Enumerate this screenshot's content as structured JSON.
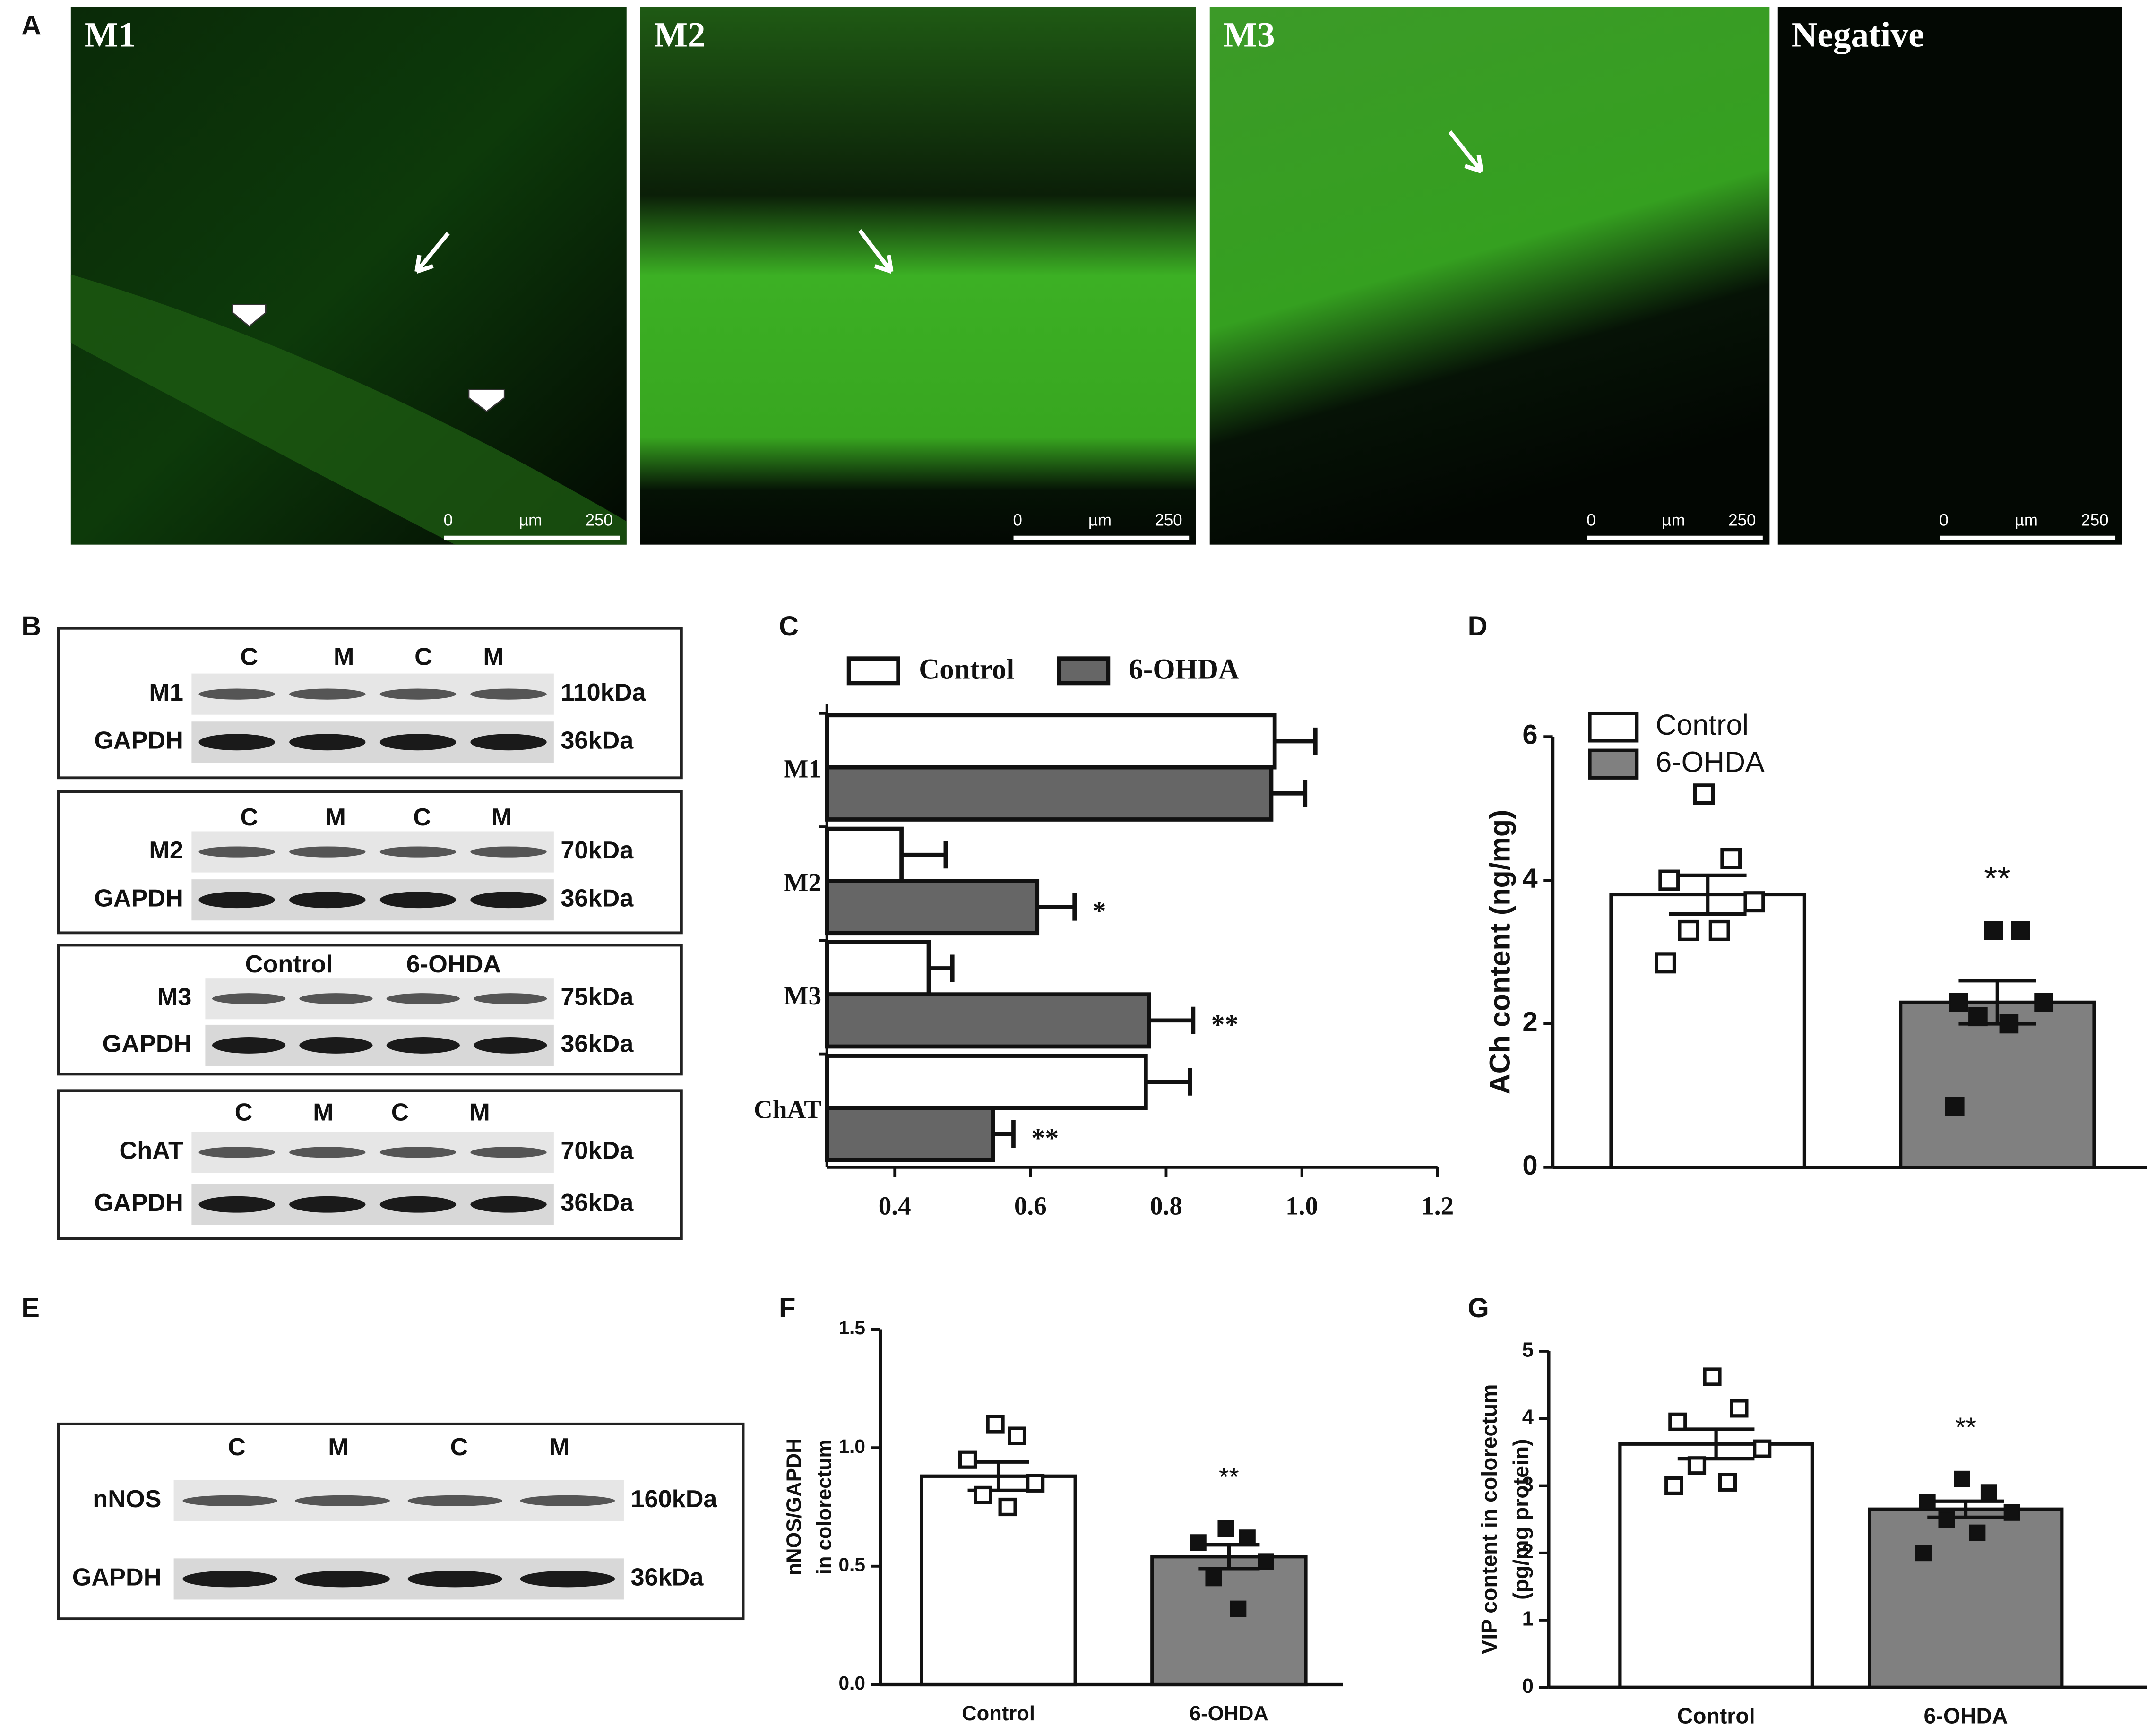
{
  "panel_labels": [
    "A",
    "B",
    "C",
    "D",
    "E",
    "F",
    "G"
  ],
  "micrographs": [
    {
      "title": "M1",
      "scale": [
        "0",
        "µm",
        "250"
      ]
    },
    {
      "title": "M2",
      "scale": [
        "0",
        "µm",
        "250"
      ]
    },
    {
      "title": "M3",
      "scale": [
        "0",
        "µm",
        "250"
      ]
    },
    {
      "title": "Negative",
      "scale": [
        "0",
        "µm",
        "250"
      ]
    }
  ],
  "blots": [
    {
      "lanes": [
        "C",
        "M",
        "C",
        "M"
      ],
      "rows": [
        {
          "label": "M1",
          "size": "110kDa"
        },
        {
          "label": "GAPDH",
          "size": "36kDa"
        }
      ]
    },
    {
      "lanes": [
        "C",
        "M",
        "C",
        "M"
      ],
      "rows": [
        {
          "label": "M2",
          "size": "70kDa"
        },
        {
          "label": "GAPDH",
          "size": "36kDa"
        }
      ]
    },
    {
      "lanes": [
        "Control",
        "6-OHDA"
      ],
      "rows": [
        {
          "label": "M3",
          "size": "75kDa"
        },
        {
          "label": "GAPDH",
          "size": "36kDa"
        }
      ]
    },
    {
      "lanes": [
        "C",
        "M",
        "C",
        "M"
      ],
      "rows": [
        {
          "label": "ChAT",
          "size": "70kDa"
        },
        {
          "label": "GAPDH",
          "size": "36kDa"
        }
      ]
    },
    {
      "lanes": [
        "C",
        "M",
        "C",
        "M"
      ],
      "rows": [
        {
          "label": "nNOS",
          "size": "160kDa"
        },
        {
          "label": "GAPDH",
          "size": "36kDa"
        }
      ]
    }
  ],
  "chart_data": [
    {
      "type": "hbar",
      "categories": [
        "M1",
        "M2",
        "M3",
        "ChAT"
      ],
      "series": [
        {
          "name": "Control",
          "color": "#ffffff",
          "values": [
            0.96,
            0.41,
            0.45,
            0.77
          ],
          "errors": [
            0.06,
            0.065,
            0.035,
            0.065
          ],
          "annotations": [
            null,
            null,
            null,
            null
          ]
        },
        {
          "name": "6-OHDA",
          "color": "#666666",
          "values": [
            0.955,
            0.61,
            0.775,
            0.545
          ],
          "errors": [
            0.05,
            0.055,
            0.065,
            0.03
          ],
          "annotations": [
            null,
            "*",
            "**",
            "**"
          ]
        }
      ],
      "xlim": [
        0.3,
        1.2
      ],
      "xticks": [
        0.4,
        0.6,
        0.8,
        {
          "value": 1,
          "label": "1.0"
        },
        1.2
      ],
      "legend": "top"
    },
    {
      "type": "bar",
      "categories": [
        null,
        null
      ],
      "ylabel": "ACh content (ng/mg)",
      "values": [
        3.8,
        2.3
      ],
      "errors": [
        0.27,
        0.3
      ],
      "colors": [
        "#ffffff",
        "#808080"
      ],
      "markers": [
        "open-square",
        "filled-square"
      ],
      "points": [
        [
          5.2,
          4.3,
          4.0,
          3.7,
          3.3,
          3.3,
          2.85
        ],
        [
          3.3,
          3.3,
          2.3,
          2.3,
          2.1,
          2.0,
          0.85
        ]
      ],
      "annotations": [
        null,
        "**"
      ],
      "legend_names": [
        "Control",
        "6-OHDA"
      ],
      "legend": "upper left",
      "ylim": [
        0,
        6
      ],
      "yticks": [
        0,
        2,
        4,
        6
      ]
    },
    {
      "type": "bar",
      "categories": [
        "Control",
        "6-OHDA"
      ],
      "ylabel": [
        "nNOS/GAPDH",
        "in colorectum"
      ],
      "values": [
        0.88,
        0.54
      ],
      "errors": [
        0.06,
        0.05
      ],
      "colors": [
        "#ffffff",
        "#808080"
      ],
      "markers": [
        "open-square",
        "filled-square"
      ],
      "points": [
        [
          1.1,
          1.05,
          0.95,
          0.85,
          0.8,
          0.75
        ],
        [
          0.66,
          0.62,
          0.6,
          0.52,
          0.45,
          0.32
        ]
      ],
      "annotations": [
        null,
        "**"
      ],
      "ylim": [
        0,
        1.5
      ],
      "yticks": [
        {
          "value": 0,
          "label": "0.0"
        },
        0.5,
        {
          "value": 1,
          "label": "1.0"
        },
        1.5
      ]
    },
    {
      "type": "bar",
      "categories": [
        "Control",
        "6-OHDA"
      ],
      "ylabel": [
        "VIP content in colorectum",
        "(pg/mg protein)"
      ],
      "values": [
        3.62,
        2.65
      ],
      "errors": [
        0.22,
        0.12
      ],
      "colors": [
        "#ffffff",
        "#808080"
      ],
      "markers": [
        "open-square",
        "filled-square"
      ],
      "points": [
        [
          4.62,
          4.15,
          3.95,
          3.55,
          3.3,
          3.05,
          3.0
        ],
        [
          3.1,
          2.9,
          2.75,
          2.6,
          2.5,
          2.3,
          2.0
        ]
      ],
      "annotations": [
        null,
        "**"
      ],
      "ylim": [
        0,
        5
      ],
      "yticks": [
        0,
        1,
        2,
        3,
        4,
        5
      ]
    }
  ]
}
